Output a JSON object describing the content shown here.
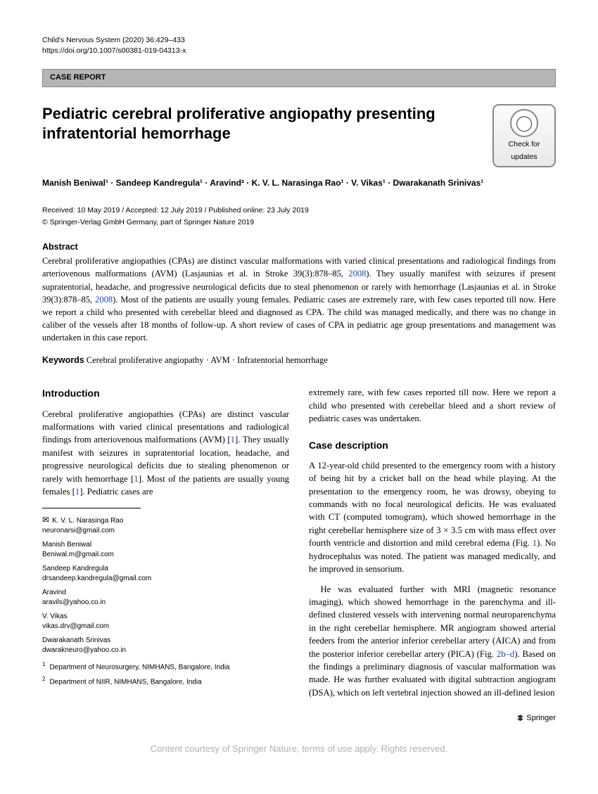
{
  "header": {
    "journal": "Child's Nervous System (2020) 36:429–433",
    "doi": "https://doi.org/10.1007/s00381-019-04313-x",
    "category": "CASE REPORT",
    "check_badge": {
      "line1": "Check for",
      "line2": "updates"
    }
  },
  "title": "Pediatric cerebral proliferative angiopathy presenting infratentorial hemorrhage",
  "authors_html": "Manish Beniwal¹ · Sandeep Kandregula¹ · Aravind² · K. V. L. Narasinga Rao¹ · V. Vikas¹ · Dwarakanath Srinivas¹",
  "dates": "Received: 10 May 2019 / Accepted: 12 July 2019 / Published online: 23 July 2019",
  "copyright": "© Springer-Verlag GmbH Germany, part of Springer Nature 2019",
  "abstract": {
    "label": "Abstract",
    "p1a": "Cerebral proliferative angiopathies (CPAs) are distinct vascular malformations with varied clinical presentations and radiological findings from arteriovenous malformations (AVM) (Lasjaunias et al. in Stroke 39(3):878–85, ",
    "link1": "2008",
    "p1b": "). They usually manifest with seizures if present supratentorial, headache, and progressive neurological deficits due to steal phenomenon or rarely with hemorrhage (Lasjaunias et al. in Stroke 39(3):878–85, ",
    "link2": "2008",
    "p1c": "). Most of the patients are usually young females. Pediatric cases are extremely rare, with few cases reported till now. Here we report a child who presented with cerebellar bleed and diagnosed as CPA. The child was managed medically, and there was no change in caliber of the vessels after 18 months of follow-up. A short review of cases of CPA in pediatric age group presentations and management was undertaken in this case report."
  },
  "keywords": {
    "label": "Keywords",
    "text": " Cerebral proliferative angiopathy · AVM · Infratentorial hemorrhage"
  },
  "sections": {
    "intro": {
      "title": "Introduction",
      "p1a": "Cerebral proliferative angiopathies (CPAs) are distinct vascular malformations with varied clinical presentations and radiological findings from arteriovenous malformations (AVM) [",
      "l1": "1",
      "p1b": "]. They usually manifest with seizures in supratentorial location, headache, and progressive neurological deficits due to stealing phenomenon or rarely with hemorrhage [",
      "l2": "1",
      "p1c": "]. Most of the patients are usually young females [",
      "l3": "1",
      "p1d": "]. Pediatric cases are"
    },
    "intro_cont": "extremely rare, with few cases reported till now. Here we report a child who presented with cerebellar bleed and a short review of pediatric cases was undertaken.",
    "case": {
      "title": "Case description",
      "p1a": "A 12-year-old child presented to the emergency room with a history of being hit by a cricket ball on the head while playing. At the presentation to the emergency room, he was drowsy, obeying to commands with no focal neurological deficits. He was evaluated with CT (computed tomogram), which showed hemorrhage in the right cerebellar hemisphere size of 3 × 3.5 cm with mass effect over fourth ventricle and distortion and mild cerebral edema (Fig. ",
      "l1": "1",
      "p1b": "). No hydrocephalus was noted. The patient was managed medically, and he improved in sensorium.",
      "p2a": "He was evaluated further with MRI (magnetic resonance imaging), which showed hemorrhage in the parenchyma and ill-defined clustered vessels with intervening normal neuroparenchyma in the right cerebellar hemisphere. MR angiogram showed arterial feeders from the anterior inferior cerebellar artery (AICA) and from the posterior inferior cerebellar artery (PICA) (Fig. ",
      "l2": "2b–d",
      "p2b": "). Based on the findings a preliminary diagnosis of vascular malformation was made. He was further evaluated with digital subtraction angiogram (DSA), which on left vertebral injection showed an ill-defined lesion"
    }
  },
  "correspondence": [
    {
      "name": "K. V. L. Narasinga Rao",
      "email": "neuronarsi@gmail.com",
      "primary": true
    },
    {
      "name": "Manish Beniwal",
      "email": "Beniwal.m@gmail.com",
      "primary": false
    },
    {
      "name": "Sandeep Kandregula",
      "email": "drsandeep.kandregula@gmail.com",
      "primary": false
    },
    {
      "name": "Aravind",
      "email": "aravils@yahoo.co.in",
      "primary": false
    },
    {
      "name": "V. Vikas",
      "email": "vikas.drv@gmail.com",
      "primary": false
    },
    {
      "name": "Dwarakanath Srinivas",
      "email": "dwarakneuro@yahoo.co.in",
      "primary": false
    }
  ],
  "affiliations": [
    {
      "num": "1",
      "text": "Department of Neurosurgery, NIMHANS, Bangalore, India"
    },
    {
      "num": "2",
      "text": "Department of NIIR, NIMHANS, Bangalore, India"
    }
  ],
  "publisher": "Springer",
  "footer": "Content courtesy of Springer Nature, terms of use apply. Rights reserved."
}
